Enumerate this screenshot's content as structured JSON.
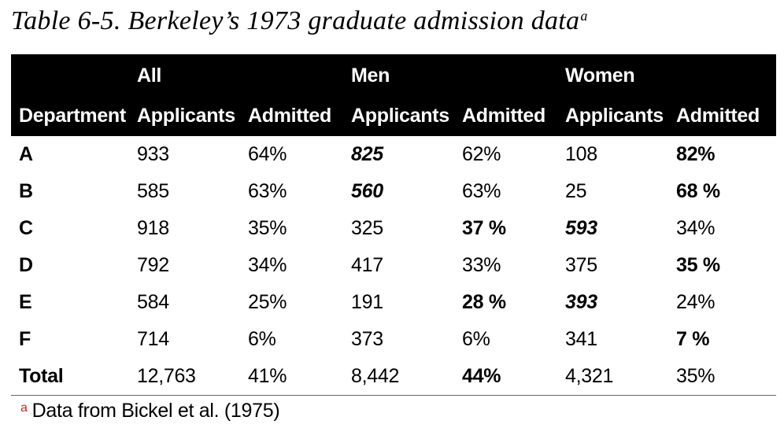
{
  "caption": {
    "text": "Table 6-5. Berkeley’s 1973 graduate admission data",
    "note_marker": "a"
  },
  "groups": [
    "All",
    "Men",
    "Women"
  ],
  "columns": [
    "Department",
    "Applicants",
    "Admitted",
    "Applicants",
    "Admitted",
    "Applicants",
    "Admitted"
  ],
  "rows": [
    {
      "dept": "A",
      "cells": [
        "933",
        "64%",
        "825",
        "62%",
        "108",
        "82%"
      ]
    },
    {
      "dept": "B",
      "cells": [
        "585",
        "63%",
        "560",
        "63%",
        "25",
        "68 %"
      ]
    },
    {
      "dept": "C",
      "cells": [
        "918",
        "35%",
        "325",
        "37 %",
        "593",
        "34%"
      ]
    },
    {
      "dept": "D",
      "cells": [
        "792",
        "34%",
        "417",
        "33%",
        "375",
        "35 %"
      ]
    },
    {
      "dept": "E",
      "cells": [
        "584",
        "25%",
        "191",
        "28 %",
        "393",
        "24%"
      ]
    },
    {
      "dept": "F",
      "cells": [
        "714",
        "6%",
        "373",
        "6%",
        "341",
        "7 %"
      ]
    },
    {
      "dept": "Total",
      "cells": [
        "12,763",
        "41%",
        "8,442",
        "44%",
        "4,321",
        "35%"
      ]
    }
  ],
  "footnote": {
    "marker": "a",
    "text": "Data from Bickel et al. (1975)"
  },
  "colors": {
    "header_bg": "#000000",
    "header_text": "#ffffff",
    "footnote_marker": "#c62828"
  }
}
